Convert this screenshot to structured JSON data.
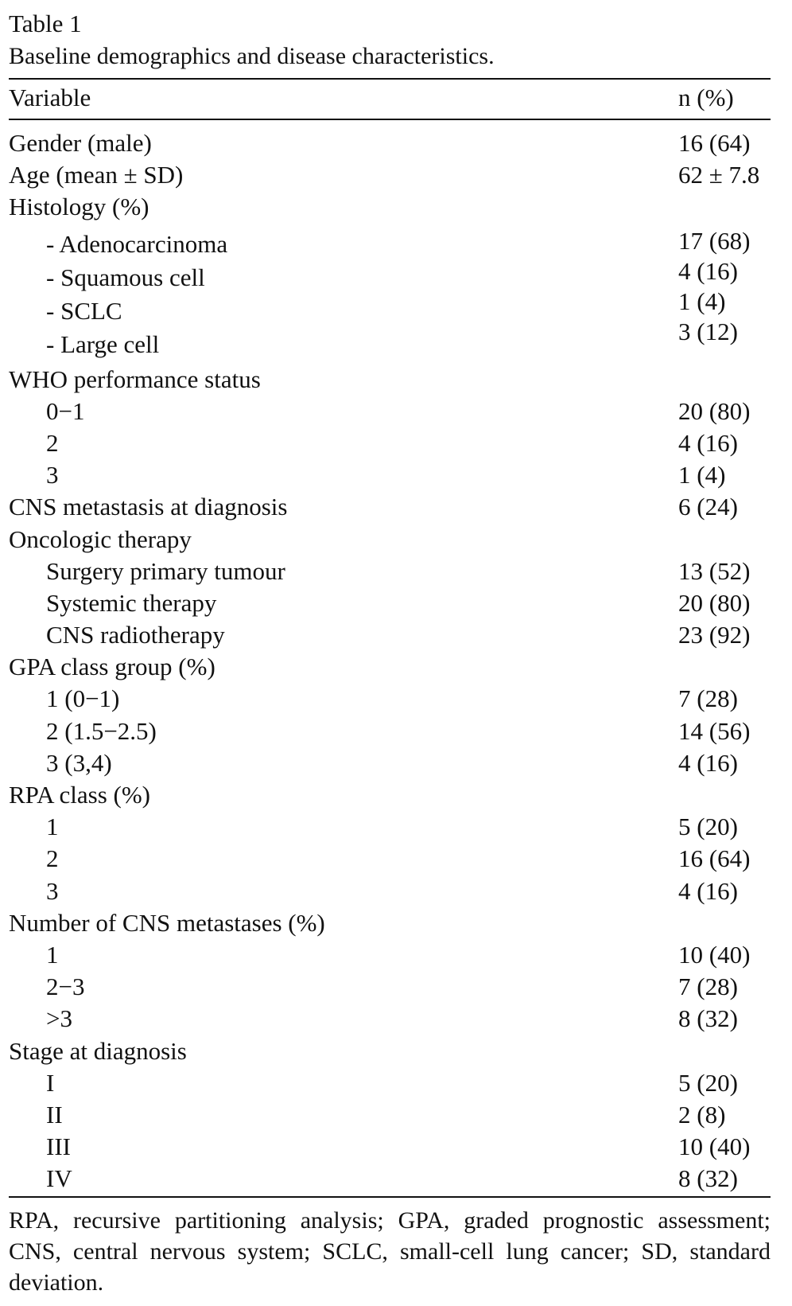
{
  "caption": {
    "label": "Table 1",
    "title": "Baseline demographics and disease characteristics."
  },
  "header": {
    "variable": "Variable",
    "n": "n (%)"
  },
  "rows_top": [
    {
      "label": "Gender (male)",
      "value": "16 (64)",
      "indent": false
    },
    {
      "label": "Age (mean ± SD)",
      "value": "62 ± 7.8",
      "indent": false
    },
    {
      "label": "Histology (%)",
      "value": "",
      "indent": false
    }
  ],
  "histology": {
    "labels": [
      "- Adenocarcinoma",
      "- Squamous cell",
      "- SCLC",
      "- Large cell"
    ],
    "values": [
      "17 (68)",
      "4 (16)",
      "1 (4)",
      "3 (12)"
    ]
  },
  "rows_bottom": [
    {
      "label": "WHO performance status",
      "value": "",
      "indent": false
    },
    {
      "label": "0−1",
      "value": "20 (80)",
      "indent": true
    },
    {
      "label": "2",
      "value": "4 (16)",
      "indent": true
    },
    {
      "label": "3",
      "value": "1 (4)",
      "indent": true
    },
    {
      "label": "CNS metastasis at diagnosis",
      "value": "6 (24)",
      "indent": false
    },
    {
      "label": "Oncologic therapy",
      "value": "",
      "indent": false
    },
    {
      "label": "Surgery primary tumour",
      "value": "13 (52)",
      "indent": true
    },
    {
      "label": "Systemic therapy",
      "value": "20 (80)",
      "indent": true
    },
    {
      "label": "CNS radiotherapy",
      "value": "23 (92)",
      "indent": true
    },
    {
      "label": "GPA class group (%)",
      "value": "",
      "indent": false
    },
    {
      "label": "1 (0−1)",
      "value": "7 (28)",
      "indent": true
    },
    {
      "label": "2 (1.5−2.5)",
      "value": "14 (56)",
      "indent": true
    },
    {
      "label": "3 (3,4)",
      "value": "4 (16)",
      "indent": true
    },
    {
      "label": "RPA class (%)",
      "value": "",
      "indent": false
    },
    {
      "label": "1",
      "value": "5 (20)",
      "indent": true
    },
    {
      "label": "2",
      "value": "16 (64)",
      "indent": true
    },
    {
      "label": "3",
      "value": "4 (16)",
      "indent": true
    },
    {
      "label": "Number of CNS metastases (%)",
      "value": "",
      "indent": false
    },
    {
      "label": "1",
      "value": "10 (40)",
      "indent": true
    },
    {
      "label": "2−3",
      "value": "7 (28)",
      "indent": true
    },
    {
      "label": ">3",
      "value": "8 (32)",
      "indent": true
    },
    {
      "label": "Stage at diagnosis",
      "value": "",
      "indent": false
    },
    {
      "label": "I",
      "value": "5 (20)",
      "indent": true
    },
    {
      "label": "II",
      "value": "2 (8)",
      "indent": true
    },
    {
      "label": "III",
      "value": "10 (40)",
      "indent": true
    },
    {
      "label": "IV",
      "value": "8 (32)",
      "indent": true
    }
  ],
  "footnote": "RPA, recursive partitioning analysis; GPA, graded prognostic assessment; CNS, central nervous system; SCLC, small-cell lung cancer; SD, standard deviation."
}
